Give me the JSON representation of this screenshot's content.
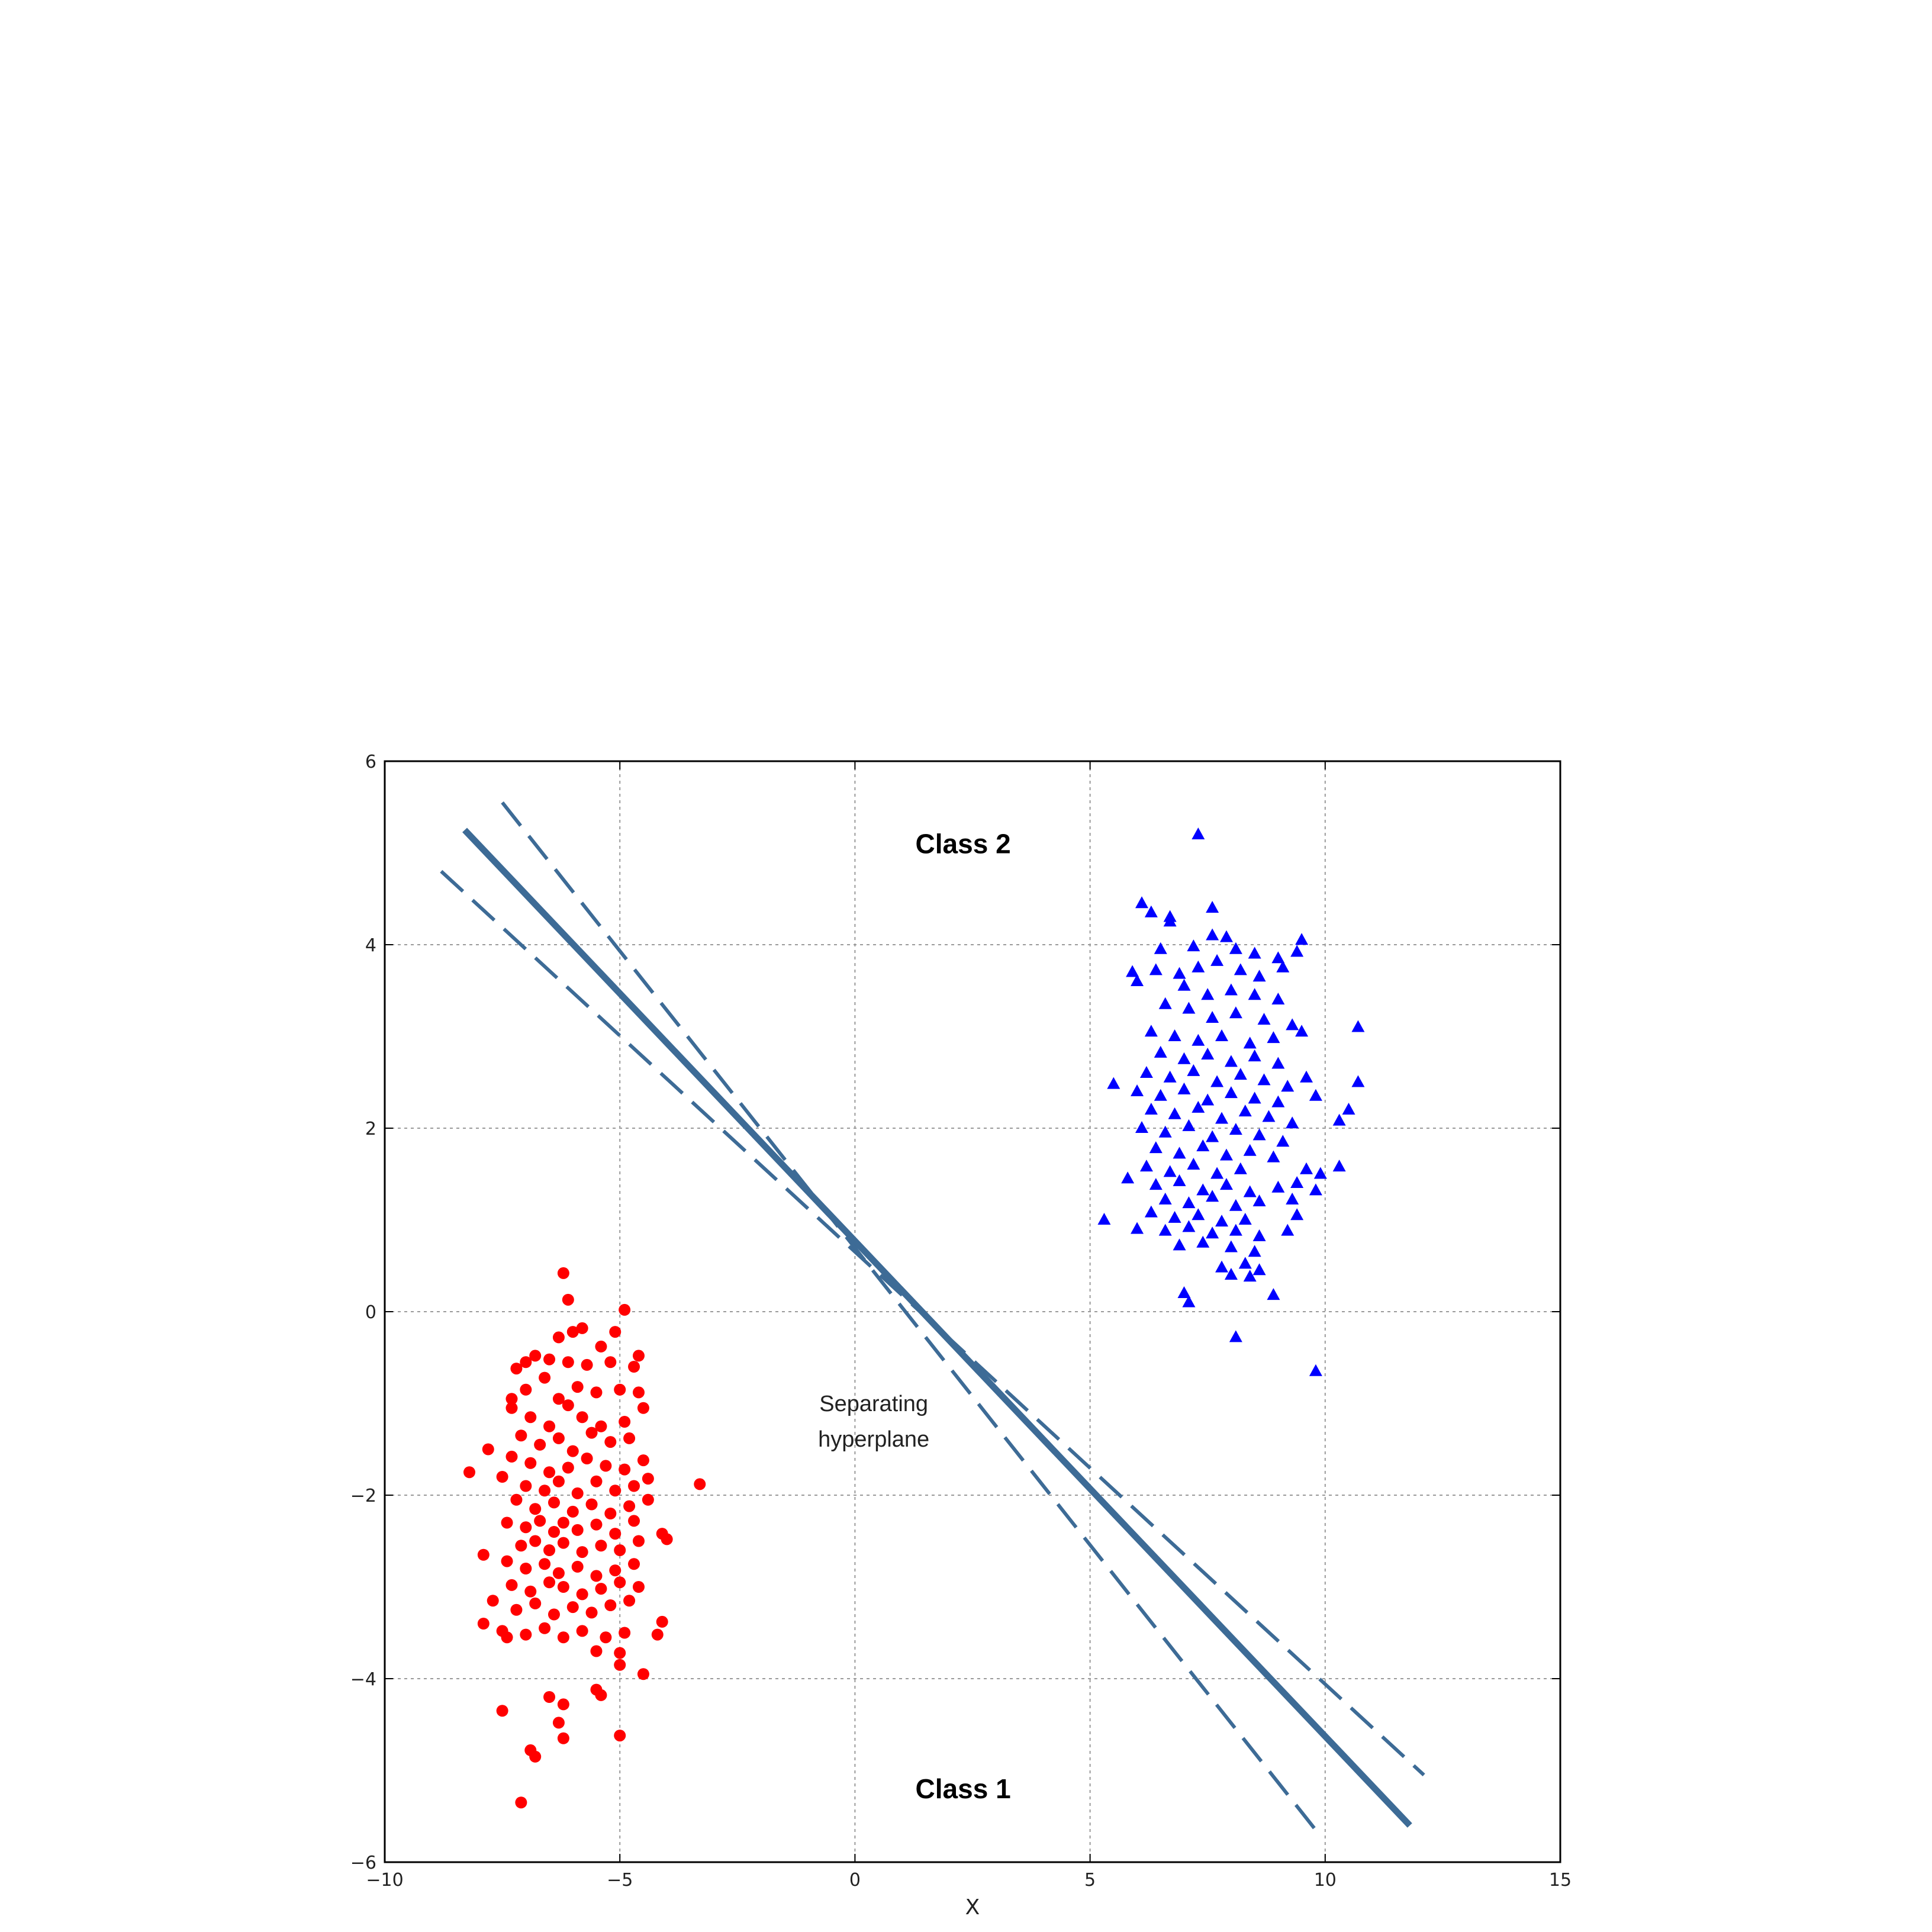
{
  "chart_data": {
    "type": "scatter",
    "xlabel": "X",
    "xlim": [
      -10,
      15
    ],
    "ylim": [
      -6,
      6
    ],
    "xticks": [
      -10,
      -5,
      0,
      5,
      10,
      15
    ],
    "yticks": [
      -6,
      -4,
      -2,
      0,
      2,
      4,
      6
    ],
    "xtick_labels": [
      "−10",
      "−5",
      "0",
      "5",
      "10",
      "15"
    ],
    "ytick_labels": [
      "−6",
      "−4",
      "−2",
      "0",
      "2",
      "4",
      "6"
    ],
    "grid": true,
    "annotations": {
      "class2": "Class 2",
      "class1": "Class 1",
      "hyperplane_line1": "Separating",
      "hyperplane_line2": "hyperplane"
    },
    "annotation_positions": {
      "class2": [
        2.3,
        5.1
      ],
      "class1": [
        2.3,
        -5.2
      ],
      "hyperplane": [
        0.4,
        -1.2
      ]
    },
    "lines": [
      {
        "style": "solid",
        "points": [
          [
            -8.3,
            5.25
          ],
          [
            11.8,
            -5.6
          ]
        ]
      },
      {
        "style": "dashed",
        "points": [
          [
            -7.5,
            5.55
          ],
          [
            9.8,
            -5.65
          ]
        ]
      },
      {
        "style": "dashed",
        "points": [
          [
            -8.8,
            4.8
          ],
          [
            12.1,
            -5.05
          ]
        ]
      }
    ],
    "series": [
      {
        "marker": "circle",
        "color": "#ff0000",
        "points": [
          [
            -6.2,
            0.42
          ],
          [
            -6.1,
            0.13
          ],
          [
            -4.9,
            0.02
          ],
          [
            -5.8,
            -0.18
          ],
          [
            -6.0,
            -0.22
          ],
          [
            -6.3,
            -0.28
          ],
          [
            -5.1,
            -0.22
          ],
          [
            -5.4,
            -0.38
          ],
          [
            -6.8,
            -0.48
          ],
          [
            -7.2,
            -0.62
          ],
          [
            -7.0,
            -0.55
          ],
          [
            -6.5,
            -0.52
          ],
          [
            -6.1,
            -0.55
          ],
          [
            -5.7,
            -0.58
          ],
          [
            -5.2,
            -0.55
          ],
          [
            -4.6,
            -0.48
          ],
          [
            -4.7,
            -0.6
          ],
          [
            -7.0,
            -0.85
          ],
          [
            -6.6,
            -0.72
          ],
          [
            -6.3,
            -0.95
          ],
          [
            -5.9,
            -0.82
          ],
          [
            -5.5,
            -0.88
          ],
          [
            -5.0,
            -0.85
          ],
          [
            -4.6,
            -0.88
          ],
          [
            -7.3,
            -0.95
          ],
          [
            -7.3,
            -1.05
          ],
          [
            -6.9,
            -1.15
          ],
          [
            -6.5,
            -1.25
          ],
          [
            -6.1,
            -1.02
          ],
          [
            -5.8,
            -1.15
          ],
          [
            -5.4,
            -1.25
          ],
          [
            -4.9,
            -1.2
          ],
          [
            -4.5,
            -1.05
          ],
          [
            -7.1,
            -1.35
          ],
          [
            -6.7,
            -1.45
          ],
          [
            -6.3,
            -1.38
          ],
          [
            -6.0,
            -1.52
          ],
          [
            -5.6,
            -1.32
          ],
          [
            -5.2,
            -1.42
          ],
          [
            -4.8,
            -1.38
          ],
          [
            -7.8,
            -1.5
          ],
          [
            -7.3,
            -1.58
          ],
          [
            -6.9,
            -1.65
          ],
          [
            -6.5,
            -1.75
          ],
          [
            -6.1,
            -1.7
          ],
          [
            -5.7,
            -1.6
          ],
          [
            -5.3,
            -1.68
          ],
          [
            -4.9,
            -1.72
          ],
          [
            -4.5,
            -1.62
          ],
          [
            -8.2,
            -1.75
          ],
          [
            -7.5,
            -1.8
          ],
          [
            -7.0,
            -1.9
          ],
          [
            -6.6,
            -1.95
          ],
          [
            -6.3,
            -1.85
          ],
          [
            -5.9,
            -1.98
          ],
          [
            -5.5,
            -1.85
          ],
          [
            -5.1,
            -1.95
          ],
          [
            -4.7,
            -1.9
          ],
          [
            -4.4,
            -1.82
          ],
          [
            -3.3,
            -1.88
          ],
          [
            -7.2,
            -2.05
          ],
          [
            -6.8,
            -2.15
          ],
          [
            -6.4,
            -2.08
          ],
          [
            -6.0,
            -2.18
          ],
          [
            -5.6,
            -2.1
          ],
          [
            -5.2,
            -2.2
          ],
          [
            -4.8,
            -2.12
          ],
          [
            -4.4,
            -2.05
          ],
          [
            -7.4,
            -2.3
          ],
          [
            -7.0,
            -2.35
          ],
          [
            -6.7,
            -2.28
          ],
          [
            -6.4,
            -2.4
          ],
          [
            -6.2,
            -2.3
          ],
          [
            -5.9,
            -2.38
          ],
          [
            -5.5,
            -2.32
          ],
          [
            -5.1,
            -2.42
          ],
          [
            -4.7,
            -2.28
          ],
          [
            -4.1,
            -2.42
          ],
          [
            -7.1,
            -2.55
          ],
          [
            -6.8,
            -2.5
          ],
          [
            -6.5,
            -2.6
          ],
          [
            -6.2,
            -2.52
          ],
          [
            -5.8,
            -2.62
          ],
          [
            -5.4,
            -2.55
          ],
          [
            -5.0,
            -2.6
          ],
          [
            -4.6,
            -2.5
          ],
          [
            -4.0,
            -2.48
          ],
          [
            -7.9,
            -2.65
          ],
          [
            -7.4,
            -2.72
          ],
          [
            -7.0,
            -2.8
          ],
          [
            -6.6,
            -2.75
          ],
          [
            -6.3,
            -2.85
          ],
          [
            -5.9,
            -2.78
          ],
          [
            -5.5,
            -2.88
          ],
          [
            -5.1,
            -2.82
          ],
          [
            -4.7,
            -2.75
          ],
          [
            -7.3,
            -2.98
          ],
          [
            -6.9,
            -3.05
          ],
          [
            -6.5,
            -2.95
          ],
          [
            -6.2,
            -3.0
          ],
          [
            -5.8,
            -3.08
          ],
          [
            -5.4,
            -3.02
          ],
          [
            -5.0,
            -2.95
          ],
          [
            -4.6,
            -3.0
          ],
          [
            -7.7,
            -3.15
          ],
          [
            -7.2,
            -3.25
          ],
          [
            -6.8,
            -3.18
          ],
          [
            -6.4,
            -3.3
          ],
          [
            -6.0,
            -3.22
          ],
          [
            -5.6,
            -3.28
          ],
          [
            -5.2,
            -3.2
          ],
          [
            -4.8,
            -3.15
          ],
          [
            -7.9,
            -3.4
          ],
          [
            -7.5,
            -3.48
          ],
          [
            -7.0,
            -3.52
          ],
          [
            -6.6,
            -3.45
          ],
          [
            -6.2,
            -3.55
          ],
          [
            -5.8,
            -3.48
          ],
          [
            -5.3,
            -3.55
          ],
          [
            -4.9,
            -3.5
          ],
          [
            -4.1,
            -3.38
          ],
          [
            -4.2,
            -3.52
          ],
          [
            -7.4,
            -3.55
          ],
          [
            -5.5,
            -3.7
          ],
          [
            -5.0,
            -3.72
          ],
          [
            -5.0,
            -3.85
          ],
          [
            -4.5,
            -3.95
          ],
          [
            -7.5,
            -4.35
          ],
          [
            -6.2,
            -4.28
          ],
          [
            -6.5,
            -4.2
          ],
          [
            -5.5,
            -4.12
          ],
          [
            -5.4,
            -4.18
          ],
          [
            -6.3,
            -4.48
          ],
          [
            -6.2,
            -4.65
          ],
          [
            -5.0,
            -4.62
          ],
          [
            -6.9,
            -4.78
          ],
          [
            -6.8,
            -4.85
          ],
          [
            -7.1,
            -5.35
          ]
        ]
      },
      {
        "marker": "triangle",
        "color": "#0000ff",
        "points": [
          [
            7.3,
            5.2
          ],
          [
            6.1,
            4.45
          ],
          [
            6.3,
            4.35
          ],
          [
            6.7,
            4.3
          ],
          [
            6.7,
            4.25
          ],
          [
            7.6,
            4.4
          ],
          [
            7.6,
            4.1
          ],
          [
            7.2,
            3.98
          ],
          [
            7.9,
            4.08
          ],
          [
            8.1,
            3.95
          ],
          [
            8.5,
            3.9
          ],
          [
            9.0,
            3.85
          ],
          [
            9.4,
            3.92
          ],
          [
            9.5,
            4.05
          ],
          [
            6.5,
            3.95
          ],
          [
            5.9,
            3.7
          ],
          [
            6.0,
            3.6
          ],
          [
            6.4,
            3.72
          ],
          [
            6.9,
            3.68
          ],
          [
            7.3,
            3.75
          ],
          [
            7.7,
            3.82
          ],
          [
            8.2,
            3.72
          ],
          [
            8.6,
            3.65
          ],
          [
            9.1,
            3.75
          ],
          [
            7.0,
            3.55
          ],
          [
            7.5,
            3.45
          ],
          [
            8.0,
            3.5
          ],
          [
            8.5,
            3.45
          ],
          [
            9.0,
            3.4
          ],
          [
            6.6,
            3.35
          ],
          [
            7.1,
            3.3
          ],
          [
            7.6,
            3.2
          ],
          [
            8.1,
            3.25
          ],
          [
            8.7,
            3.18
          ],
          [
            9.3,
            3.12
          ],
          [
            10.7,
            3.1
          ],
          [
            6.3,
            3.05
          ],
          [
            6.8,
            3.0
          ],
          [
            7.3,
            2.95
          ],
          [
            7.8,
            3.0
          ],
          [
            8.4,
            2.92
          ],
          [
            8.9,
            2.98
          ],
          [
            9.5,
            3.05
          ],
          [
            6.5,
            2.82
          ],
          [
            7.0,
            2.75
          ],
          [
            7.5,
            2.8
          ],
          [
            8.0,
            2.72
          ],
          [
            8.5,
            2.78
          ],
          [
            9.0,
            2.7
          ],
          [
            6.2,
            2.6
          ],
          [
            6.7,
            2.55
          ],
          [
            7.2,
            2.62
          ],
          [
            7.7,
            2.5
          ],
          [
            8.2,
            2.58
          ],
          [
            8.7,
            2.52
          ],
          [
            9.2,
            2.45
          ],
          [
            9.6,
            2.55
          ],
          [
            10.7,
            2.5
          ],
          [
            5.5,
            2.48
          ],
          [
            6.0,
            2.4
          ],
          [
            6.5,
            2.35
          ],
          [
            7.0,
            2.42
          ],
          [
            7.5,
            2.3
          ],
          [
            8.0,
            2.38
          ],
          [
            8.5,
            2.32
          ],
          [
            9.0,
            2.28
          ],
          [
            9.8,
            2.35
          ],
          [
            6.3,
            2.2
          ],
          [
            6.8,
            2.15
          ],
          [
            7.3,
            2.22
          ],
          [
            7.8,
            2.1
          ],
          [
            8.3,
            2.18
          ],
          [
            8.8,
            2.12
          ],
          [
            9.3,
            2.05
          ],
          [
            10.5,
            2.2
          ],
          [
            10.3,
            2.08
          ],
          [
            6.1,
            2.0
          ],
          [
            6.6,
            1.95
          ],
          [
            7.1,
            2.02
          ],
          [
            7.6,
            1.9
          ],
          [
            8.1,
            1.98
          ],
          [
            8.6,
            1.92
          ],
          [
            9.1,
            1.85
          ],
          [
            6.4,
            1.78
          ],
          [
            6.9,
            1.72
          ],
          [
            7.4,
            1.8
          ],
          [
            7.9,
            1.7
          ],
          [
            8.4,
            1.75
          ],
          [
            8.9,
            1.68
          ],
          [
            6.2,
            1.58
          ],
          [
            6.7,
            1.52
          ],
          [
            7.2,
            1.6
          ],
          [
            7.7,
            1.5
          ],
          [
            8.2,
            1.55
          ],
          [
            9.6,
            1.55
          ],
          [
            10.3,
            1.58
          ],
          [
            9.9,
            1.5
          ],
          [
            5.8,
            1.45
          ],
          [
            6.4,
            1.38
          ],
          [
            6.9,
            1.42
          ],
          [
            7.4,
            1.32
          ],
          [
            7.9,
            1.38
          ],
          [
            8.4,
            1.3
          ],
          [
            9.0,
            1.35
          ],
          [
            9.4,
            1.4
          ],
          [
            9.8,
            1.32
          ],
          [
            6.6,
            1.22
          ],
          [
            7.1,
            1.18
          ],
          [
            7.6,
            1.25
          ],
          [
            8.1,
            1.15
          ],
          [
            8.6,
            1.2
          ],
          [
            9.3,
            1.22
          ],
          [
            6.3,
            1.08
          ],
          [
            6.8,
            1.02
          ],
          [
            7.3,
            1.05
          ],
          [
            7.8,
            0.98
          ],
          [
            8.3,
            1.0
          ],
          [
            9.4,
            1.05
          ],
          [
            5.3,
            1.0
          ],
          [
            6.0,
            0.9
          ],
          [
            6.6,
            0.88
          ],
          [
            7.1,
            0.92
          ],
          [
            7.6,
            0.85
          ],
          [
            8.1,
            0.88
          ],
          [
            8.6,
            0.82
          ],
          [
            9.2,
            0.88
          ],
          [
            6.9,
            0.72
          ],
          [
            7.4,
            0.75
          ],
          [
            8.0,
            0.7
          ],
          [
            8.5,
            0.65
          ],
          [
            7.8,
            0.48
          ],
          [
            8.3,
            0.52
          ],
          [
            8.6,
            0.45
          ],
          [
            8.0,
            0.4
          ],
          [
            8.4,
            0.38
          ],
          [
            7.0,
            0.2
          ],
          [
            7.1,
            0.1
          ],
          [
            8.9,
            0.18
          ],
          [
            8.1,
            -0.28
          ],
          [
            9.8,
            -0.65
          ]
        ]
      }
    ]
  }
}
